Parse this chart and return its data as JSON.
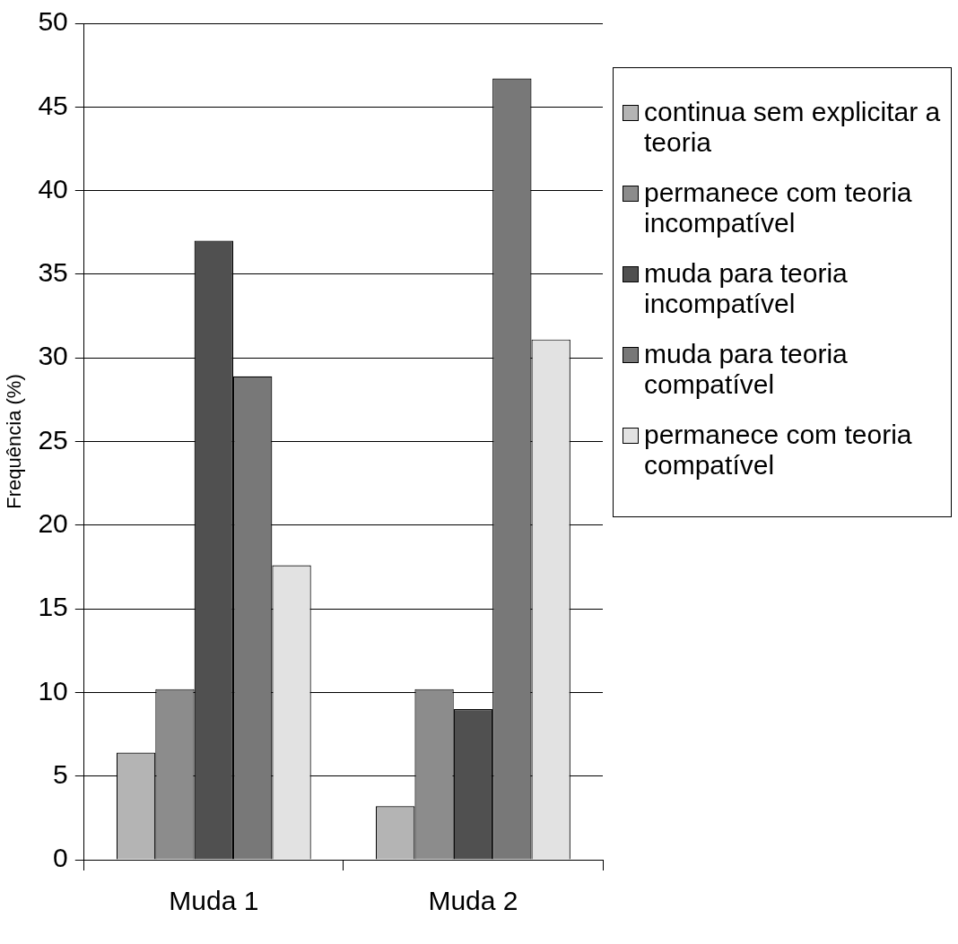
{
  "chart_data": {
    "type": "bar",
    "ylabel": "Frequência (%)",
    "categories": [
      "Muda 1",
      "Muda 2"
    ],
    "series": [
      {
        "name": "continua sem explicitar a teoria",
        "color": "#b4b4b4",
        "values": [
          6.4,
          3.2
        ]
      },
      {
        "name": "permanece com teoria incompatível",
        "color": "#8c8c8c",
        "values": [
          10.2,
          10.2
        ]
      },
      {
        "name": "muda para teoria incompatível",
        "color": "#505050",
        "values": [
          37.0,
          9.0
        ]
      },
      {
        "name": "muda para teoria compatível",
        "color": "#787878",
        "values": [
          28.9,
          46.7
        ]
      },
      {
        "name": "permanece com teoria compatível",
        "color": "#e2e2e2",
        "values": [
          17.6,
          31.1
        ]
      }
    ],
    "ylim": [
      0,
      50
    ],
    "yticks": [
      0,
      5,
      10,
      15,
      20,
      25,
      30,
      35,
      40,
      45,
      50
    ],
    "grid": "y",
    "legend": "right"
  }
}
